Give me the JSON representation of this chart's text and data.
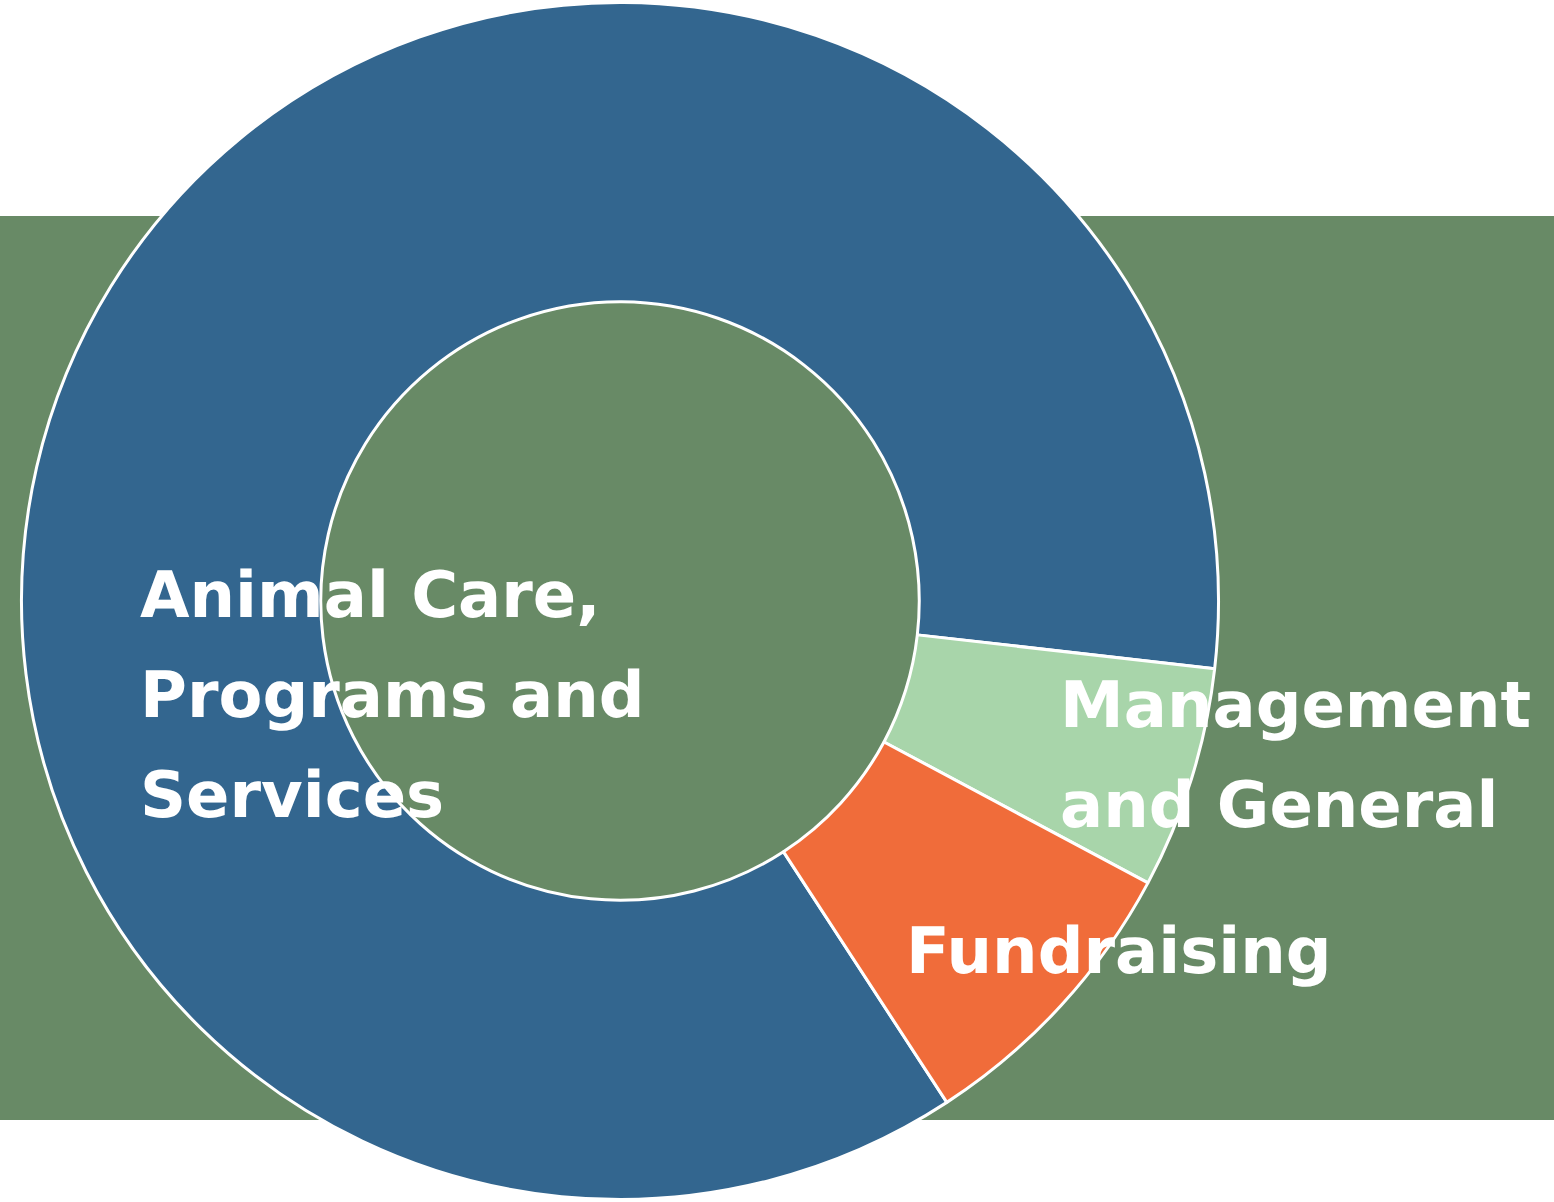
{
  "chart_data": {
    "type": "donut",
    "categories": [
      "Animal Care, Programs and Services",
      "Management and General",
      "Fundraising"
    ],
    "values": [
      86,
      6,
      8
    ],
    "colors": [
      "#33668f",
      "#a8d5aa",
      "#f06c3a"
    ],
    "legend": false
  }
}
